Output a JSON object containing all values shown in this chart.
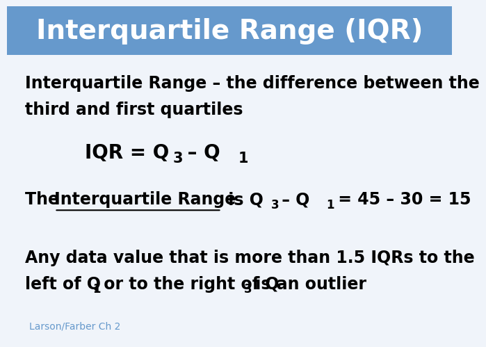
{
  "title": "Interquartile Range (IQR)",
  "title_bg_color": "#6699CC",
  "title_text_color": "#FFFFFF",
  "bg_color": "#F0F4FA",
  "title_fontsize": 28,
  "body_fontsize": 17,
  "formula_fontsize": 20,
  "credit_text": "Larson/Farber Ch 2",
  "credit_color": "#6699CC",
  "credit_fontsize": 10,
  "line1": "Interquartile Range – the difference between the",
  "line2": "third and first quartiles",
  "line5": "Any data value that is more than 1.5 IQRs to the",
  "body_color": "#000000"
}
